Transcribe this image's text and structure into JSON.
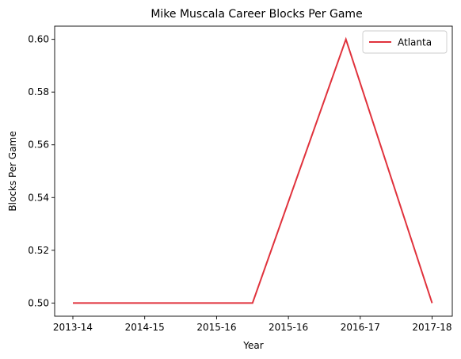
{
  "chart_data": {
    "type": "line",
    "title": "Mike Muscala Career Blocks Per Game",
    "xlabel": "Year",
    "ylabel": "Blocks Per Game",
    "x_tick_labels": [
      "2013-14",
      "2014-15",
      "2015-16",
      "2015-16",
      "2016-17",
      "2017-18"
    ],
    "y_tick_labels": [
      "0.50",
      "0.52",
      "0.54",
      "0.56",
      "0.58",
      "0.60"
    ],
    "ylim": [
      0.495,
      0.605
    ],
    "grid": false,
    "legend_position": "top-right",
    "series": [
      {
        "name": "Atlanta",
        "color": "#e0323c",
        "x": [
          0,
          2.5,
          3.8,
          5
        ],
        "values": [
          0.5,
          0.5,
          0.6,
          0.5
        ]
      }
    ]
  }
}
